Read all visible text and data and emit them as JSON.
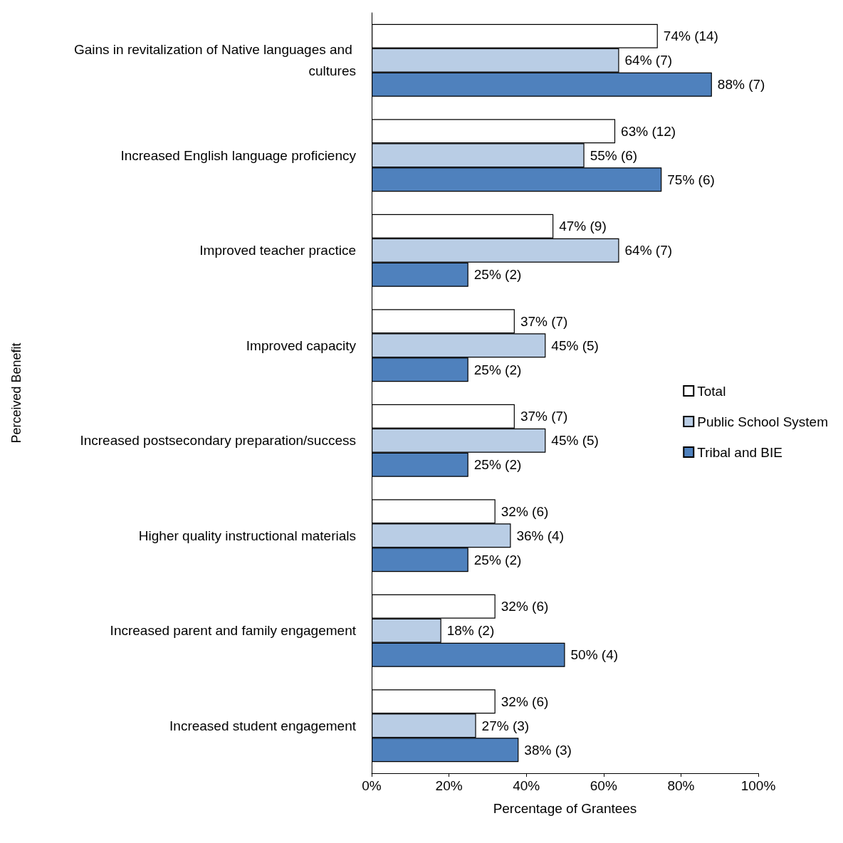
{
  "chart_data": {
    "type": "bar",
    "orientation": "horizontal",
    "xlabel": "Percentage of Grantees",
    "ylabel": "Perceived Benefit",
    "categories": [
      "Gains in revitalization of Native languages and cultures",
      "Increased English language proficiency",
      "Improved teacher practice",
      "Improved capacity",
      "Increased postsecondary preparation/success",
      "Higher quality instructional materials",
      "Increased parent and family engagement",
      "Increased student engagement"
    ],
    "series": [
      {
        "name": "Total",
        "color": "#ffffff",
        "values": [
          74,
          63,
          47,
          37,
          37,
          32,
          32,
          32
        ],
        "value_labels": [
          "74% (14)",
          "63% (12)",
          "47% (9)",
          "37% (7)",
          "37% (7)",
          "32% (6)",
          "32% (6)",
          "32% (6)"
        ]
      },
      {
        "name": "Public School System",
        "color": "#b9cde5",
        "values": [
          64,
          55,
          64,
          45,
          45,
          36,
          18,
          27
        ],
        "value_labels": [
          "64% (7)",
          "55% (6)",
          "64% (7)",
          "45% (5)",
          "45% (5)",
          "36% (4)",
          "18% (2)",
          "27% (3)"
        ]
      },
      {
        "name": "Tribal and BIE",
        "color": "#4f81bd",
        "values": [
          88,
          75,
          25,
          25,
          25,
          25,
          50,
          38
        ],
        "value_labels": [
          "88% (7)",
          "75% (6)",
          "25% (2)",
          "25% (2)",
          "25% (2)",
          "25% (2)",
          "50% (4)",
          "38% (3)"
        ]
      }
    ],
    "xlim": [
      0,
      100
    ],
    "xticks": [
      {
        "value": 0,
        "label": "0%"
      },
      {
        "value": 20,
        "label": "20%"
      },
      {
        "value": 40,
        "label": "40%"
      },
      {
        "value": 60,
        "label": "60%"
      },
      {
        "value": 80,
        "label": "80%"
      },
      {
        "value": 100,
        "label": "100%"
      }
    ],
    "legend": "right",
    "grid": false
  }
}
